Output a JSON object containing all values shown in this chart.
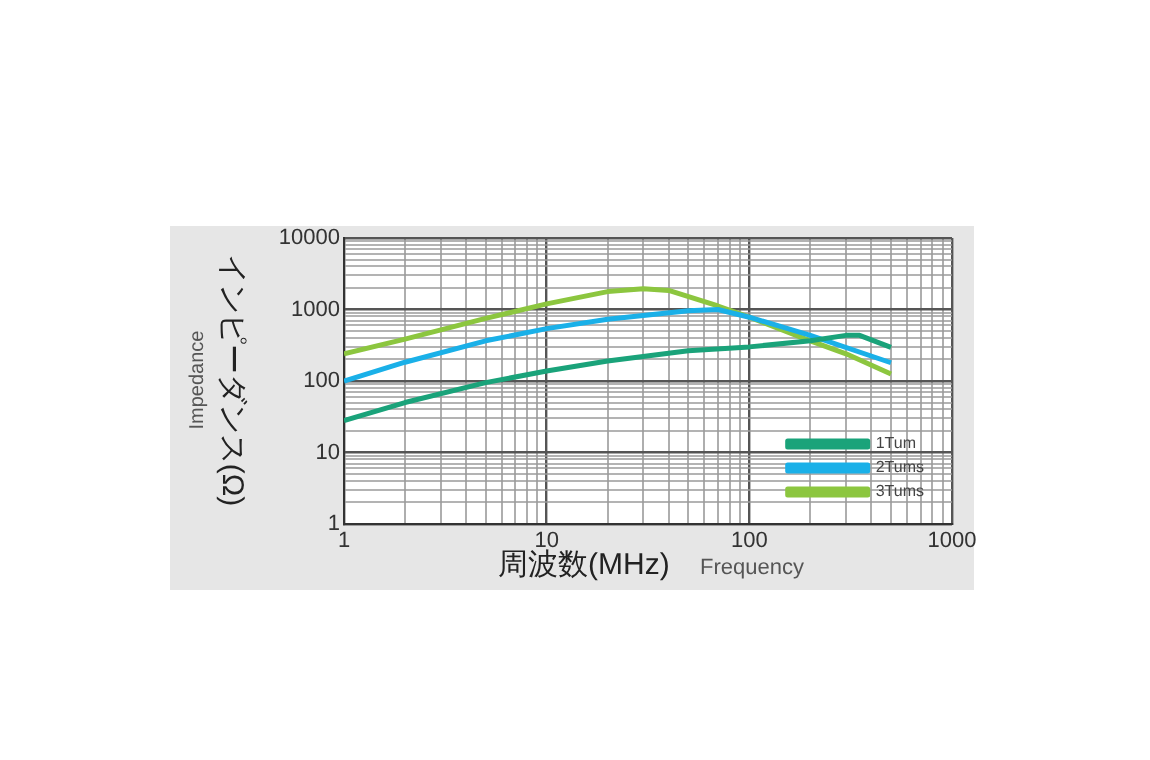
{
  "chart_data": {
    "type": "line",
    "xlabel": "周波数(MHz)",
    "ylabel": "インピーダンス(Ω)",
    "annotations": [
      "Impedance",
      "Frequency"
    ],
    "log": "xy",
    "grid": true,
    "legend": "bottom right",
    "marker": "none",
    "line_style": "solid",
    "xlim": [
      1,
      1000
    ],
    "ylim": [
      1,
      10000
    ],
    "xticks": [
      1,
      {
        "value": 2,
        "label": null
      },
      {
        "value": 3,
        "label": null
      },
      {
        "value": 4,
        "label": null
      },
      {
        "value": 5,
        "label": null
      },
      {
        "value": 6,
        "label": null
      },
      {
        "value": 7,
        "label": null
      },
      {
        "value": 8,
        "label": null
      },
      {
        "value": 9,
        "label": null
      },
      10,
      {
        "value": 20,
        "label": null
      },
      {
        "value": 30,
        "label": null
      },
      {
        "value": 40,
        "label": null
      },
      {
        "value": 50,
        "label": null
      },
      {
        "value": 60,
        "label": null
      },
      {
        "value": 70,
        "label": null
      },
      {
        "value": 80,
        "label": null
      },
      {
        "value": 90,
        "label": null
      },
      100,
      {
        "value": 200,
        "label": null
      },
      {
        "value": 300,
        "label": null
      },
      {
        "value": 400,
        "label": null
      },
      {
        "value": 500,
        "label": null
      },
      {
        "value": 600,
        "label": null
      },
      {
        "value": 700,
        "label": null
      },
      {
        "value": 800,
        "label": null
      },
      {
        "value": 900,
        "label": null
      },
      1000
    ],
    "yticks": [
      1,
      {
        "value": 2,
        "label": null
      },
      {
        "value": 3,
        "label": null
      },
      {
        "value": 4,
        "label": null
      },
      {
        "value": 5,
        "label": null
      },
      {
        "value": 6,
        "label": null
      },
      {
        "value": 7,
        "label": null
      },
      {
        "value": 8,
        "label": null
      },
      {
        "value": 9,
        "label": null
      },
      10,
      {
        "value": 20,
        "label": null
      },
      {
        "value": 30,
        "label": null
      },
      {
        "value": 40,
        "label": null
      },
      {
        "value": 50,
        "label": null
      },
      {
        "value": 60,
        "label": null
      },
      {
        "value": 70,
        "label": null
      },
      {
        "value": 80,
        "label": null
      },
      {
        "value": 90,
        "label": null
      },
      100,
      {
        "value": 200,
        "label": null
      },
      {
        "value": 300,
        "label": null
      },
      {
        "value": 400,
        "label": null
      },
      {
        "value": 500,
        "label": null
      },
      {
        "value": 600,
        "label": null
      },
      {
        "value": 700,
        "label": null
      },
      {
        "value": 800,
        "label": null
      },
      {
        "value": 900,
        "label": null
      },
      1000,
      {
        "value": 2000,
        "label": null
      },
      {
        "value": 3000,
        "label": null
      },
      {
        "value": 4000,
        "label": null
      },
      {
        "value": 5000,
        "label": null
      },
      {
        "value": 6000,
        "label": null
      },
      {
        "value": 7000,
        "label": null
      },
      {
        "value": 8000,
        "label": null
      },
      {
        "value": 9000,
        "label": null
      },
      10000
    ],
    "series": [
      {
        "name": "1Tum",
        "color": "#1aa37a",
        "x": [
          1,
          2,
          5,
          10,
          20,
          50,
          100,
          200,
          300,
          350,
          500
        ],
        "values": [
          28,
          50,
          95,
          138,
          190,
          265,
          300,
          365,
          435,
          435,
          295
        ]
      },
      {
        "name": "2Tums",
        "color": "#1ab0e8",
        "x": [
          1,
          2,
          5,
          10,
          20,
          50,
          70,
          100,
          200,
          500
        ],
        "values": [
          100,
          183,
          365,
          540,
          730,
          960,
          1000,
          780,
          435,
          180
        ]
      },
      {
        "name": "3Tums",
        "color": "#8cc63f",
        "x": [
          1,
          2,
          5,
          10,
          20,
          30,
          40,
          70,
          100,
          200,
          300,
          500
        ],
        "values": [
          240,
          385,
          750,
          1200,
          1780,
          1950,
          1850,
          1120,
          780,
          365,
          240,
          125
        ]
      }
    ]
  }
}
